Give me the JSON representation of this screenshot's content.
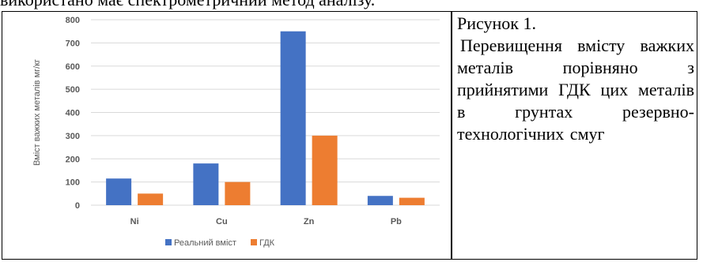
{
  "document": {
    "top_text": "використано має спектрометричний метод аналізу.",
    "caption_title": "Рисунок 1.",
    "caption_body": "Перевищення вмісту важких металів порівняно з прийнятими ГДК цих металів в грунтах резервно-технологічних смуг"
  },
  "chart_data": {
    "type": "bar",
    "categories": [
      "Ni",
      "Cu",
      "Zn",
      "Pb"
    ],
    "series": [
      {
        "name": "Реальний вміст",
        "values": [
          115,
          180,
          750,
          40
        ]
      },
      {
        "name": "ГДК",
        "values": [
          50,
          100,
          300,
          32
        ]
      }
    ],
    "title": "",
    "xlabel": "",
    "ylabel": "Вміст важких металів мг/кг",
    "ylim": [
      0,
      800
    ],
    "yticks": [
      0,
      100,
      200,
      300,
      400,
      500,
      600,
      700,
      800
    ],
    "grid": true,
    "legend": "bottom-center",
    "colors": [
      "#4472C4",
      "#ED7D31"
    ]
  }
}
